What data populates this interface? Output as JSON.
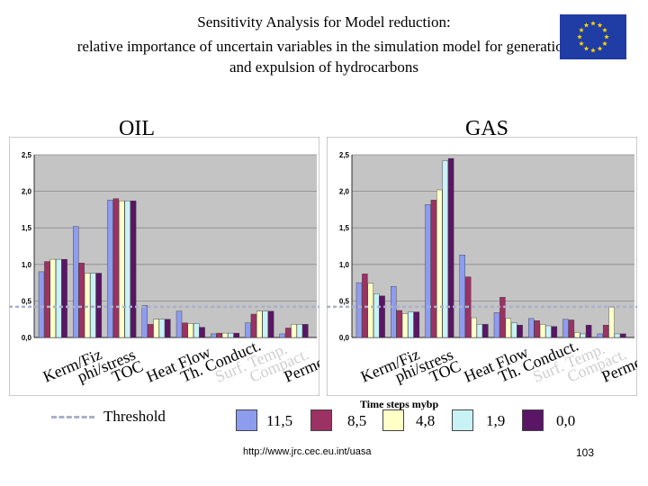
{
  "title_lines": [
    "Sensitivity Analysis for Model reduction:",
    "relative importance of uncertain variables in the simulation model for generation",
    "and expulsion of hydrocarbons"
  ],
  "legend": {
    "threshold_label": "Threshold",
    "time_steps_label": "Time steps mybp",
    "entries": [
      "11,5",
      "8,5",
      "4,8",
      "1,9",
      "0,0"
    ],
    "colors": [
      "#8e9cf0",
      "#9c3164",
      "#ffffc8",
      "#c9f2f7",
      "#5a1566"
    ]
  },
  "footer": {
    "url": "http://www.jrc.cec.eu.int/uasa",
    "page_number": "103"
  },
  "chart_data": [
    {
      "type": "bar",
      "title": "OIL",
      "categories": [
        "Kerm/Fiz",
        "phi/stress",
        "TOC",
        "Heat Flow",
        "Th. Conduct.",
        "Surf. Temp.",
        "Compact.",
        "Permeab.."
      ],
      "series": [
        {
          "name": "11,5",
          "values": [
            0.9,
            1.52,
            1.88,
            0.44,
            0.36,
            0.05,
            0.2,
            0.05
          ]
        },
        {
          "name": "8,5",
          "values": [
            1.04,
            1.02,
            1.9,
            0.18,
            0.2,
            0.06,
            0.32,
            0.13
          ]
        },
        {
          "name": "4,8",
          "values": [
            1.07,
            0.88,
            1.87,
            0.25,
            0.19,
            0.06,
            0.36,
            0.18
          ]
        },
        {
          "name": "1,9",
          "values": [
            1.07,
            0.88,
            1.87,
            0.25,
            0.19,
            0.06,
            0.36,
            0.18
          ]
        },
        {
          "name": "0,0",
          "values": [
            1.07,
            0.88,
            1.87,
            0.25,
            0.14,
            0.06,
            0.36,
            0.18
          ]
        }
      ],
      "yticks": [
        "0,0",
        "0,5",
        "1,0",
        "1,5",
        "2,0",
        "2,5"
      ],
      "ylim": [
        0,
        2.5
      ],
      "threshold": 0.42,
      "grid": true
    },
    {
      "type": "bar",
      "title": "GAS",
      "categories": [
        "Kerm/Fiz",
        "phi/stress",
        "TOC",
        "Heat Flow",
        "Th. Conduct.",
        "Surf. Temp.",
        "Compact.",
        "Permeab.."
      ],
      "series": [
        {
          "name": "11,5",
          "values": [
            0.75,
            0.7,
            1.82,
            1.13,
            0.34,
            0.26,
            0.25,
            0.05
          ]
        },
        {
          "name": "8,5",
          "values": [
            0.87,
            0.37,
            1.88,
            0.83,
            0.55,
            0.23,
            0.24,
            0.17
          ]
        },
        {
          "name": "4,8",
          "values": [
            0.74,
            0.33,
            2.02,
            0.27,
            0.26,
            0.18,
            0.07,
            0.42
          ]
        },
        {
          "name": "1,9",
          "values": [
            0.6,
            0.35,
            2.42,
            0.18,
            0.2,
            0.16,
            0.05,
            0.05
          ]
        },
        {
          "name": "0,0",
          "values": [
            0.57,
            0.35,
            2.45,
            0.18,
            0.17,
            0.15,
            0.17,
            0.05
          ]
        }
      ],
      "yticks": [
        "0,0",
        "0,5",
        "1,0",
        "1,5",
        "2,0",
        "2,5"
      ],
      "ylim": [
        0,
        2.5
      ],
      "threshold": 0.42,
      "grid": true
    }
  ]
}
